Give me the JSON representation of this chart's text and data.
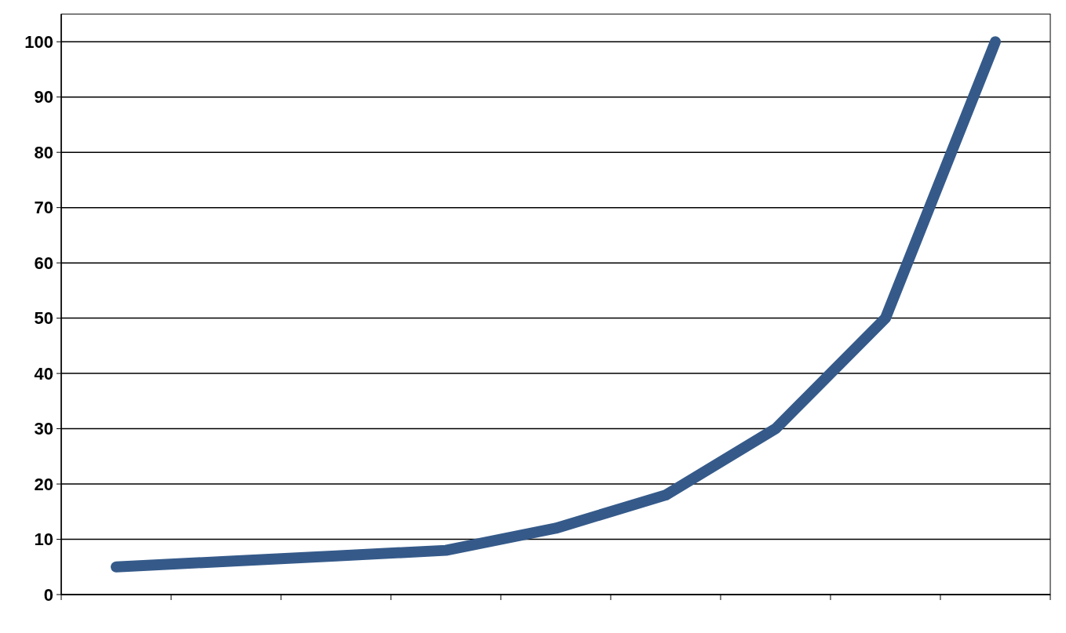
{
  "chart_data": {
    "type": "line",
    "categories": [
      null,
      null,
      null,
      null,
      null,
      null,
      null,
      null,
      null
    ],
    "series": [
      {
        "color": "#355a8a",
        "values": [
          5,
          6,
          7,
          8,
          12,
          18,
          30,
          50,
          100
        ]
      }
    ],
    "ylim": [
      0,
      105
    ],
    "yticks": [
      0,
      10,
      20,
      30,
      40,
      50,
      60,
      70,
      80,
      90,
      100
    ],
    "grid": "y",
    "line_style": "solid"
  }
}
